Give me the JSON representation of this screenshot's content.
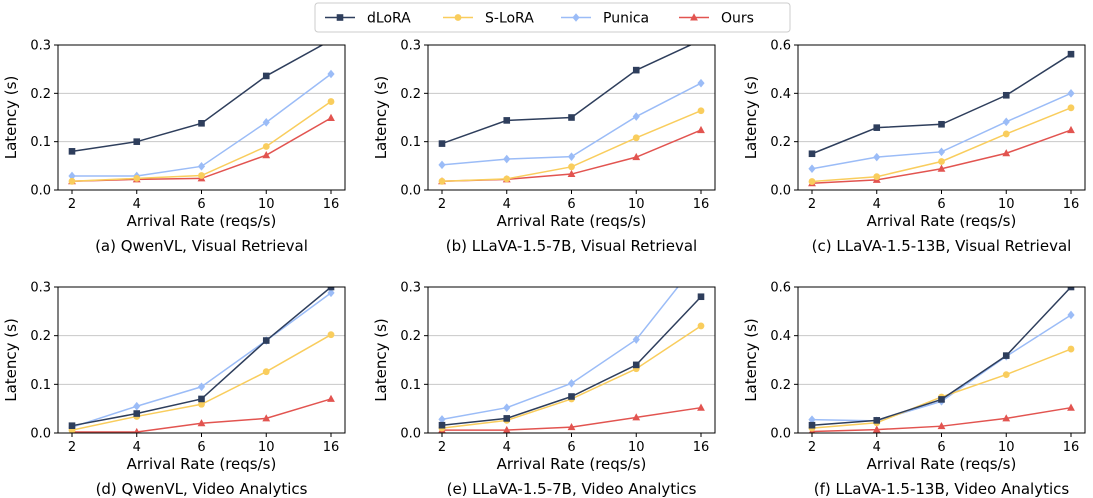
{
  "legend": {
    "placement": "top-center",
    "items": [
      {
        "name": "dLoRA",
        "color": "#2e3e5c",
        "marker": "square"
      },
      {
        "name": "S-LoRA",
        "color": "#f9cd5d",
        "marker": "circle"
      },
      {
        "name": "Punica",
        "color": "#9bbcf7",
        "marker": "diamond"
      },
      {
        "name": "Ours",
        "color": "#e25450",
        "marker": "triangle"
      }
    ]
  },
  "chart_data": [
    {
      "type": "line",
      "caption": "(a) QwenVL, Visual Retrieval",
      "xlabel": "Arrival Rate (reqs/s)",
      "ylabel": "Latency (s)",
      "x": [
        2,
        4,
        6,
        10,
        16
      ],
      "x_ticks": [
        "2",
        "4",
        "6",
        "10",
        "16"
      ],
      "ylim": [
        0,
        0.3
      ],
      "y_ticks": [
        "0.0",
        "0.1",
        "0.2",
        "0.3"
      ],
      "grid": "horizontal",
      "series": [
        {
          "name": "dLoRA",
          "values": [
            0.08,
            0.1,
            0.138,
            0.236,
            0.31
          ]
        },
        {
          "name": "S-LoRA",
          "values": [
            0.018,
            0.024,
            0.03,
            0.09,
            0.183
          ]
        },
        {
          "name": "Punica",
          "values": [
            0.029,
            0.029,
            0.049,
            0.14,
            0.24
          ]
        },
        {
          "name": "Ours",
          "values": [
            0.018,
            0.022,
            0.024,
            0.072,
            0.149
          ]
        }
      ]
    },
    {
      "type": "line",
      "caption": "(b) LLaVA-1.5-7B, Visual Retrieval",
      "xlabel": "Arrival Rate (reqs/s)",
      "ylabel": "Latency (s)",
      "x": [
        2,
        4,
        6,
        10,
        16
      ],
      "x_ticks": [
        "2",
        "4",
        "6",
        "10",
        "16"
      ],
      "ylim": [
        0,
        0.3
      ],
      "y_ticks": [
        "0.0",
        "0.1",
        "0.2",
        "0.3"
      ],
      "grid": "horizontal",
      "series": [
        {
          "name": "dLoRA",
          "values": [
            0.096,
            0.144,
            0.15,
            0.248,
            0.31
          ]
        },
        {
          "name": "S-LoRA",
          "values": [
            0.018,
            0.023,
            0.048,
            0.108,
            0.164
          ]
        },
        {
          "name": "Punica",
          "values": [
            0.052,
            0.064,
            0.069,
            0.152,
            0.221
          ]
        },
        {
          "name": "Ours",
          "values": [
            0.018,
            0.022,
            0.033,
            0.068,
            0.124
          ]
        }
      ]
    },
    {
      "type": "line",
      "caption": "(c) LLaVA-1.5-13B, Visual Retrieval",
      "xlabel": "Arrival Rate (reqs/s)",
      "ylabel": "Latency (s)",
      "x": [
        2,
        4,
        6,
        10,
        16
      ],
      "x_ticks": [
        "2",
        "4",
        "6",
        "10",
        "16"
      ],
      "ylim": [
        0,
        0.6
      ],
      "y_ticks": [
        "0.0",
        "0.2",
        "0.4",
        "0.6"
      ],
      "grid": "horizontal",
      "series": [
        {
          "name": "dLoRA",
          "values": [
            0.15,
            0.258,
            0.272,
            0.392,
            0.562
          ]
        },
        {
          "name": "S-LoRA",
          "values": [
            0.035,
            0.055,
            0.118,
            0.232,
            0.34
          ]
        },
        {
          "name": "Punica",
          "values": [
            0.088,
            0.136,
            0.158,
            0.282,
            0.4
          ]
        },
        {
          "name": "Ours",
          "values": [
            0.028,
            0.042,
            0.088,
            0.152,
            0.248
          ]
        }
      ]
    },
    {
      "type": "line",
      "caption": "(d) QwenVL, Video Analytics",
      "xlabel": "Arrival Rate (reqs/s)",
      "ylabel": "Latency (s)",
      "x": [
        2,
        4,
        6,
        10,
        16
      ],
      "x_ticks": [
        "2",
        "4",
        "6",
        "10",
        "16"
      ],
      "ylim": [
        0,
        0.3
      ],
      "y_ticks": [
        "0.0",
        "0.1",
        "0.2",
        "0.3"
      ],
      "grid": "horizontal",
      "series": [
        {
          "name": "dLoRA",
          "values": [
            0.015,
            0.04,
            0.07,
            0.19,
            0.3
          ]
        },
        {
          "name": "S-LoRA",
          "values": [
            0.006,
            0.034,
            0.059,
            0.126,
            0.202
          ]
        },
        {
          "name": "Punica",
          "values": [
            0.012,
            0.055,
            0.095,
            0.19,
            0.288
          ]
        },
        {
          "name": "Ours",
          "values": [
            0.002,
            0.002,
            0.02,
            0.03,
            0.07
          ]
        }
      ]
    },
    {
      "type": "line",
      "caption": "(e) LLaVA-1.5-7B, Video Analytics",
      "xlabel": "Arrival Rate (reqs/s)",
      "ylabel": "Latency (s)",
      "x": [
        2,
        4,
        6,
        10,
        16
      ],
      "x_ticks": [
        "2",
        "4",
        "6",
        "10",
        "16"
      ],
      "ylim": [
        0,
        0.3
      ],
      "y_ticks": [
        "0.0",
        "0.1",
        "0.2",
        "0.3"
      ],
      "grid": "horizontal",
      "series": [
        {
          "name": "dLoRA",
          "values": [
            0.016,
            0.03,
            0.075,
            0.14,
            0.28
          ]
        },
        {
          "name": "S-LoRA",
          "values": [
            0.01,
            0.026,
            0.07,
            0.132,
            0.22
          ]
        },
        {
          "name": "Punica",
          "values": [
            0.028,
            0.052,
            0.102,
            0.192,
            0.36
          ]
        },
        {
          "name": "Ours",
          "values": [
            0.006,
            0.006,
            0.012,
            0.032,
            0.052
          ]
        }
      ]
    },
    {
      "type": "line",
      "caption": "(f) LLaVA-1.5-13B, Video Analytics",
      "xlabel": "Arrival Rate (reqs/s)",
      "ylabel": "Latency (s)",
      "x": [
        2,
        4,
        6,
        10,
        16
      ],
      "x_ticks": [
        "2",
        "4",
        "6",
        "10",
        "16"
      ],
      "ylim": [
        0,
        0.6
      ],
      "y_ticks": [
        "0.0",
        "0.2",
        "0.4",
        "0.6"
      ],
      "grid": "horizontal",
      "series": [
        {
          "name": "dLoRA",
          "values": [
            0.032,
            0.052,
            0.138,
            0.318,
            0.6
          ]
        },
        {
          "name": "S-LoRA",
          "values": [
            0.02,
            0.042,
            0.148,
            0.24,
            0.345
          ]
        },
        {
          "name": "Punica",
          "values": [
            0.055,
            0.05,
            0.13,
            0.315,
            0.485
          ]
        },
        {
          "name": "Ours",
          "values": [
            0.006,
            0.014,
            0.028,
            0.06,
            0.104
          ]
        }
      ]
    }
  ]
}
